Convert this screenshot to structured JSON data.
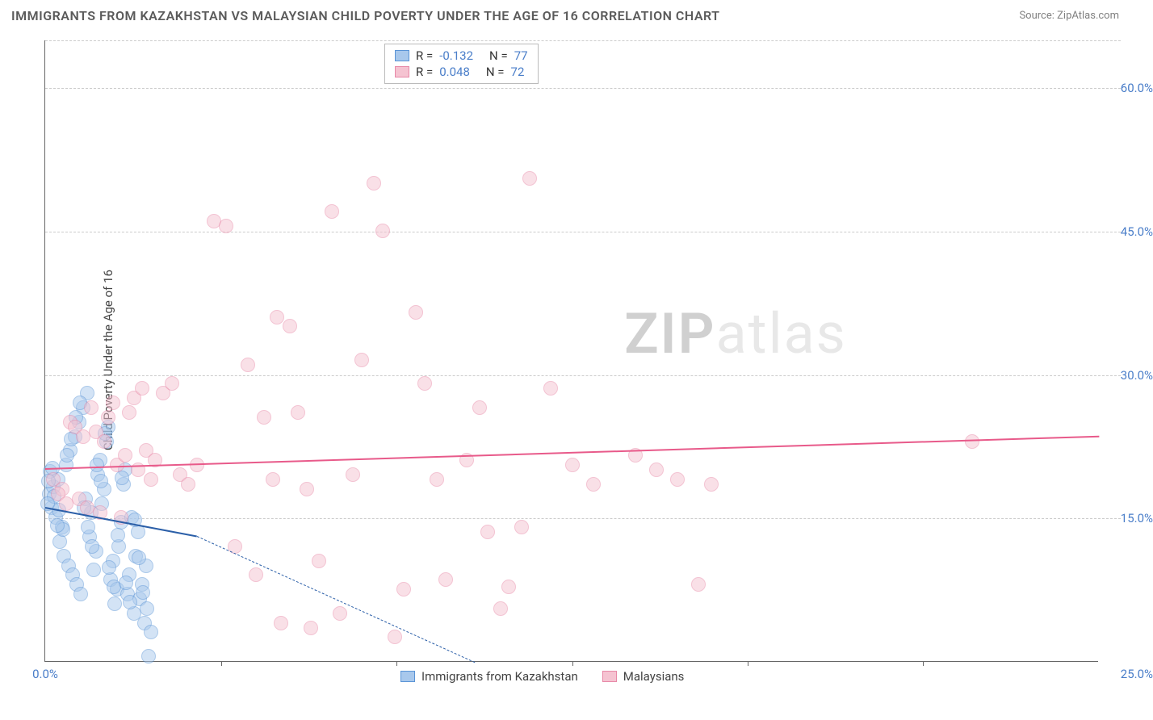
{
  "title": "IMMIGRANTS FROM KAZAKHSTAN VS MALAYSIAN CHILD POVERTY UNDER THE AGE OF 16 CORRELATION CHART",
  "source": {
    "label": "Source:",
    "site": "ZipAtlas.com"
  },
  "y_axis_label": "Child Poverty Under the Age of 16",
  "watermark": {
    "part1": "ZIP",
    "part2": "atlas"
  },
  "chart": {
    "type": "scatter",
    "xlim": [
      0.0,
      25.0
    ],
    "ylim": [
      0.0,
      65.0
    ],
    "x_ticks": [
      0.0,
      25.0
    ],
    "x_tick_labels": [
      "0.0%",
      "25.0%"
    ],
    "x_minor_ticks": [
      4.17,
      8.33,
      12.5,
      16.67,
      20.83
    ],
    "y_ticks": [
      15.0,
      30.0,
      45.0,
      60.0
    ],
    "y_tick_labels": [
      "15.0%",
      "30.0%",
      "45.0%",
      "60.0%"
    ],
    "grid_color": "#cccccc",
    "background_color": "#ffffff",
    "axis_color": "#666666",
    "series": [
      {
        "name": "Immigrants from Kazakhstan",
        "fill": "#a8c8ec",
        "stroke": "#5a94d6",
        "fill_opacity": 0.5,
        "trend_color": "#2b5fa8",
        "R": "-0.132",
        "N": "77",
        "trend": {
          "x1": 0.0,
          "y1": 16.2,
          "x2": 3.6,
          "y2": 13.2,
          "dash_x2": 10.2,
          "dash_y2": 0.0
        },
        "points": [
          [
            0.1,
            17.5
          ],
          [
            0.2,
            18.2
          ],
          [
            0.15,
            16.0
          ],
          [
            0.3,
            19.0
          ],
          [
            0.25,
            15.0
          ],
          [
            0.4,
            14.0
          ],
          [
            0.35,
            12.5
          ],
          [
            0.5,
            20.5
          ],
          [
            0.45,
            11.0
          ],
          [
            0.6,
            22.0
          ],
          [
            0.55,
            10.0
          ],
          [
            0.7,
            23.5
          ],
          [
            0.65,
            9.0
          ],
          [
            0.8,
            25.0
          ],
          [
            0.75,
            8.0
          ],
          [
            0.9,
            26.5
          ],
          [
            0.85,
            7.0
          ],
          [
            1.0,
            28.0
          ],
          [
            0.95,
            17.0
          ],
          [
            1.1,
            15.5
          ],
          [
            1.05,
            13.0
          ],
          [
            1.2,
            11.5
          ],
          [
            1.15,
            9.5
          ],
          [
            1.3,
            21.0
          ],
          [
            1.25,
            19.5
          ],
          [
            1.4,
            18.0
          ],
          [
            1.35,
            16.5
          ],
          [
            1.5,
            24.5
          ],
          [
            1.45,
            23.0
          ],
          [
            1.6,
            10.5
          ],
          [
            1.55,
            8.5
          ],
          [
            1.7,
            7.5
          ],
          [
            1.65,
            6.0
          ],
          [
            1.8,
            14.5
          ],
          [
            1.75,
            12.0
          ],
          [
            1.9,
            20.0
          ],
          [
            1.85,
            18.5
          ],
          [
            2.0,
            9.0
          ],
          [
            1.95,
            7.0
          ],
          [
            2.1,
            5.0
          ],
          [
            2.05,
            15.0
          ],
          [
            2.2,
            13.5
          ],
          [
            2.15,
            11.0
          ],
          [
            2.3,
            8.0
          ],
          [
            2.25,
            6.5
          ],
          [
            2.4,
            10.0
          ],
          [
            2.35,
            4.0
          ],
          [
            2.5,
            3.0
          ],
          [
            2.45,
            0.5
          ],
          [
            0.12,
            19.8
          ],
          [
            0.22,
            17.2
          ],
          [
            0.32,
            15.8
          ],
          [
            0.42,
            13.8
          ],
          [
            0.52,
            21.5
          ],
          [
            0.62,
            23.2
          ],
          [
            0.72,
            25.5
          ],
          [
            0.82,
            27.0
          ],
          [
            0.92,
            16.0
          ],
          [
            1.02,
            14.0
          ],
          [
            1.12,
            12.0
          ],
          [
            1.22,
            20.5
          ],
          [
            1.32,
            18.8
          ],
          [
            1.42,
            23.8
          ],
          [
            1.52,
            9.8
          ],
          [
            1.62,
            7.8
          ],
          [
            1.72,
            13.2
          ],
          [
            1.82,
            19.2
          ],
          [
            1.92,
            8.2
          ],
          [
            2.02,
            6.2
          ],
          [
            2.12,
            14.8
          ],
          [
            2.22,
            10.8
          ],
          [
            2.32,
            7.2
          ],
          [
            2.42,
            5.5
          ],
          [
            0.05,
            16.5
          ],
          [
            0.08,
            18.8
          ],
          [
            0.18,
            20.2
          ],
          [
            0.28,
            14.2
          ]
        ]
      },
      {
        "name": "Malaysians",
        "fill": "#f5c3d1",
        "stroke": "#e888a7",
        "fill_opacity": 0.5,
        "trend_color": "#e85a8a",
        "R": "0.048",
        "N": "72",
        "trend": {
          "x1": 0.0,
          "y1": 20.3,
          "x2": 25.0,
          "y2": 23.7
        },
        "points": [
          [
            0.2,
            19.0
          ],
          [
            0.4,
            18.0
          ],
          [
            0.6,
            25.0
          ],
          [
            0.8,
            17.0
          ],
          [
            1.0,
            16.0
          ],
          [
            1.2,
            24.0
          ],
          [
            1.4,
            23.0
          ],
          [
            1.6,
            27.0
          ],
          [
            1.8,
            15.0
          ],
          [
            2.0,
            26.0
          ],
          [
            2.2,
            20.0
          ],
          [
            2.4,
            22.0
          ],
          [
            2.6,
            21.0
          ],
          [
            2.8,
            28.0
          ],
          [
            3.0,
            29.0
          ],
          [
            3.2,
            19.5
          ],
          [
            3.4,
            18.5
          ],
          [
            3.6,
            20.5
          ],
          [
            4.0,
            46.0
          ],
          [
            4.3,
            45.5
          ],
          [
            4.5,
            12.0
          ],
          [
            4.8,
            31.0
          ],
          [
            5.0,
            9.0
          ],
          [
            5.2,
            25.5
          ],
          [
            5.4,
            19.0
          ],
          [
            5.5,
            36.0
          ],
          [
            5.6,
            4.0
          ],
          [
            5.8,
            35.0
          ],
          [
            6.0,
            26.0
          ],
          [
            6.2,
            18.0
          ],
          [
            6.3,
            3.5
          ],
          [
            6.5,
            10.5
          ],
          [
            6.8,
            47.0
          ],
          [
            7.0,
            5.0
          ],
          [
            7.3,
            19.5
          ],
          [
            7.5,
            31.5
          ],
          [
            7.8,
            50.0
          ],
          [
            8.0,
            45.0
          ],
          [
            8.3,
            2.5
          ],
          [
            8.5,
            7.5
          ],
          [
            8.8,
            36.5
          ],
          [
            9.0,
            29.0
          ],
          [
            9.3,
            19.0
          ],
          [
            9.5,
            8.5
          ],
          [
            10.0,
            21.0
          ],
          [
            10.3,
            26.5
          ],
          [
            10.5,
            13.5
          ],
          [
            10.8,
            5.5
          ],
          [
            11.0,
            7.8
          ],
          [
            11.3,
            14.0
          ],
          [
            11.5,
            50.5
          ],
          [
            12.0,
            28.5
          ],
          [
            12.5,
            20.5
          ],
          [
            13.0,
            18.5
          ],
          [
            14.0,
            21.5
          ],
          [
            14.5,
            20.0
          ],
          [
            15.0,
            19.0
          ],
          [
            15.5,
            8.0
          ],
          [
            15.8,
            18.5
          ],
          [
            22.0,
            23.0
          ],
          [
            0.3,
            17.5
          ],
          [
            0.5,
            16.5
          ],
          [
            0.7,
            24.5
          ],
          [
            0.9,
            23.5
          ],
          [
            1.1,
            26.5
          ],
          [
            1.3,
            15.5
          ],
          [
            1.5,
            25.5
          ],
          [
            1.7,
            20.5
          ],
          [
            1.9,
            21.5
          ],
          [
            2.1,
            27.5
          ],
          [
            2.3,
            28.5
          ],
          [
            2.5,
            19.0
          ]
        ]
      }
    ]
  },
  "legend_bottom": [
    {
      "label": "Immigrants from Kazakhstan",
      "series_index": 0
    },
    {
      "label": "Malaysians",
      "series_index": 1
    }
  ]
}
